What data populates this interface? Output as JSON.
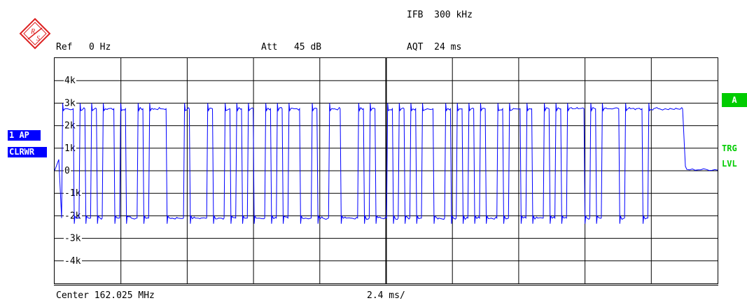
{
  "header": {
    "ifb": "IFB  300 kHz",
    "ref": "Ref   0 Hz",
    "att": "Att   45 dB",
    "aqt": "AQT  24 ms"
  },
  "left_tags": {
    "trace": "1 AP",
    "mode": "CLRWR"
  },
  "right_tags": {
    "marker": "A",
    "trg": "TRG",
    "lvl": "LVL"
  },
  "footer": {
    "center": "Center 162.025 MHz",
    "span": "2.4 ms/"
  },
  "colors": {
    "trace": "#0000ff",
    "grid": "#000000",
    "tag_blue": "#0000ff",
    "tag_green": "#00cc00"
  },
  "chart_data": {
    "type": "line",
    "xlabel": "",
    "ylabel": "",
    "y_unit": "Hz",
    "yticks": [
      "4k",
      "3k",
      "2k",
      "1k",
      "0",
      "-1k",
      "-2k",
      "-3k",
      "-4k"
    ],
    "ylim": [
      -5000,
      5000
    ],
    "xlim": [
      -12,
      12
    ],
    "x_unit": "ms (2.4 ms/div)",
    "grid": true,
    "symbols": [
      1,
      1,
      0,
      1,
      0,
      1,
      0,
      1,
      1,
      0,
      1,
      0,
      0,
      1,
      0,
      1,
      1,
      1,
      0,
      0,
      0,
      1,
      0,
      0,
      0,
      1,
      0,
      0,
      1,
      0,
      1,
      0,
      1,
      0,
      0,
      1,
      0,
      1,
      0,
      1,
      1,
      0,
      0,
      1,
      0,
      0,
      1,
      1,
      0,
      0,
      0,
      1,
      0,
      1,
      0,
      0,
      1,
      0,
      1,
      0,
      1,
      0,
      1,
      1,
      0,
      0,
      1,
      0,
      1,
      0,
      1,
      0,
      1,
      0,
      0,
      1,
      0,
      1,
      1,
      0,
      1,
      0,
      0,
      1,
      0,
      1,
      0,
      1,
      1,
      1,
      0,
      1,
      0,
      1,
      1,
      1,
      0,
      1,
      1,
      1,
      0,
      1,
      1,
      1,
      1,
      1,
      1
    ],
    "symbol_high_hz": 2750,
    "symbol_low_hz": -2100,
    "tail_hz": 50,
    "series": [
      {
        "name": "",
        "values": []
      }
    ]
  }
}
